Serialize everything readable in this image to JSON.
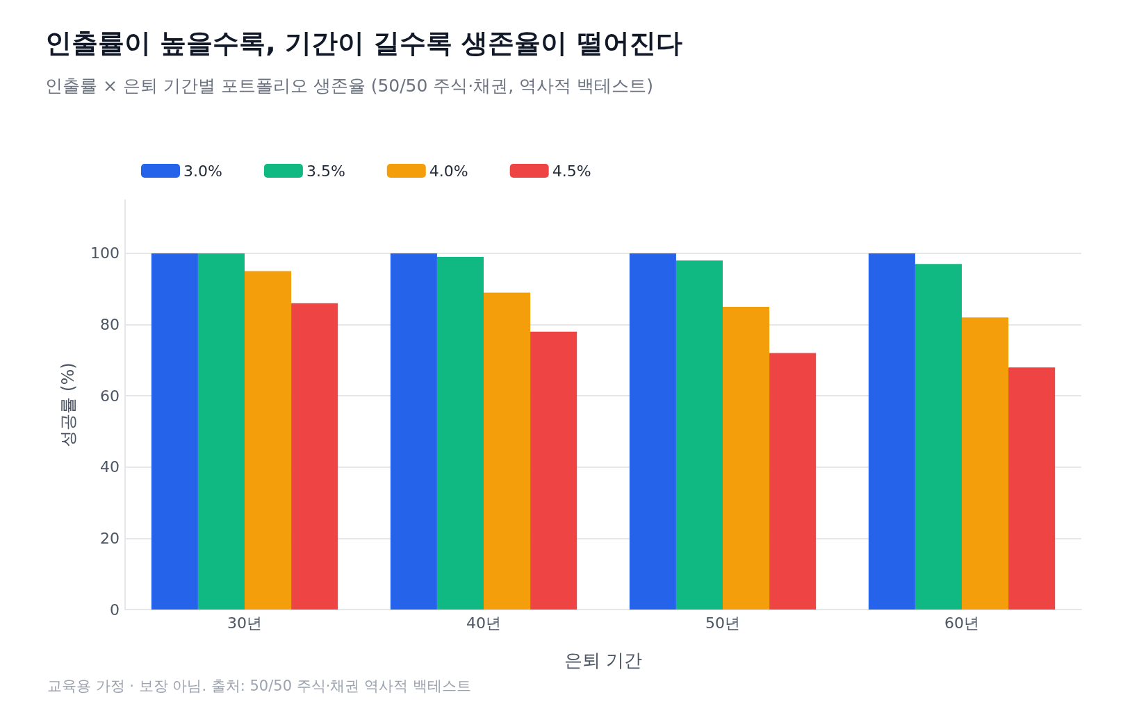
{
  "chart_data": {
    "type": "bar",
    "title": "인출률이 높을수록, 기간이 길수록 생존율이 떨어진다",
    "subtitle": "인출률 × 은퇴 기간별 포트폴리오 생존율 (50/50 주식·채권, 역사적 백테스트)",
    "xlabel": "은퇴 기간",
    "ylabel": "성공률 (%)",
    "categories": [
      "30년",
      "40년",
      "50년",
      "60년"
    ],
    "series": [
      {
        "name": "3.0%",
        "color": "#2563eb",
        "values": [
          100,
          100,
          100,
          100
        ]
      },
      {
        "name": "3.5%",
        "color": "#10b981",
        "values": [
          100,
          99,
          98,
          97
        ]
      },
      {
        "name": "4.0%",
        "color": "#f59e0b",
        "values": [
          95,
          89,
          85,
          82
        ]
      },
      {
        "name": "4.5%",
        "color": "#ef4444",
        "values": [
          86,
          78,
          72,
          68
        ]
      }
    ],
    "ylim": [
      0,
      115
    ],
    "yticks": [
      0,
      20,
      40,
      60,
      80,
      100
    ],
    "grid": "y",
    "legend": "top left",
    "annotations": [
      "교육용 가정 · 보장 아님. 출처: 50/50 주식·채권 역사적 백테스트"
    ]
  }
}
